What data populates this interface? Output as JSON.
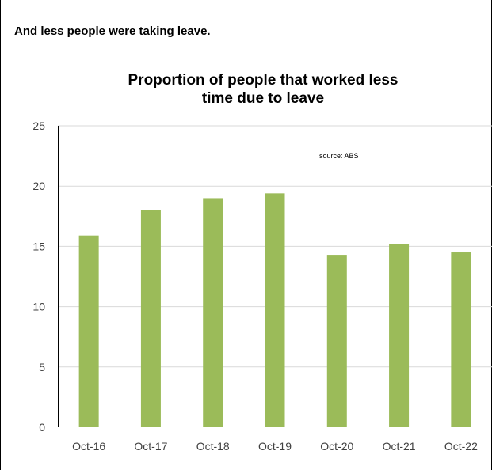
{
  "caption": "And less people were taking leave.",
  "chart_data": {
    "type": "bar",
    "title_lines": [
      "Proportion of people that worked less",
      "time due to leave"
    ],
    "annotation": "source:  ABS",
    "categories": [
      "Oct-16",
      "Oct-17",
      "Oct-18",
      "Oct-19",
      "Oct-20",
      "Oct-21",
      "Oct-22"
    ],
    "values": [
      15.9,
      18.0,
      19.0,
      19.4,
      14.3,
      15.2,
      14.5
    ],
    "ylim": [
      0,
      25
    ],
    "yticks": [
      0,
      5,
      10,
      15,
      20,
      25
    ],
    "xlabel": "",
    "ylabel": "",
    "grid": true,
    "bar_color": "#9bbb59",
    "grid_color": "#d9d9d9"
  }
}
